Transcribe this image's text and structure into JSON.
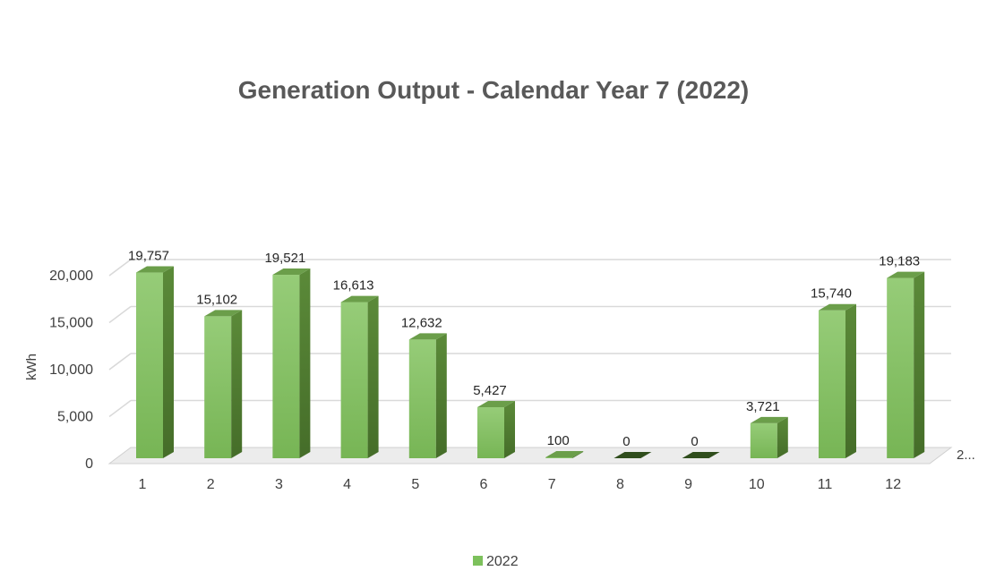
{
  "chart_data": {
    "type": "bar",
    "title": "Generation Output - Calendar Year 7 (2022)",
    "ylabel": "kWh",
    "xlabel": "",
    "depth_axis_label": "2...",
    "categories": [
      "1",
      "2",
      "3",
      "4",
      "5",
      "6",
      "7",
      "8",
      "9",
      "10",
      "11",
      "12"
    ],
    "series": [
      {
        "name": "2022",
        "values": [
          19757,
          15102,
          19521,
          16613,
          12632,
          5427,
          100,
          0,
          0,
          3721,
          15740,
          19183
        ]
      }
    ],
    "data_labels": [
      "19,757",
      "15,102",
      "19,521",
      "16,613",
      "12,632",
      "5,427",
      "100",
      "0",
      "0",
      "3,721",
      "15,740",
      "19,183"
    ],
    "y_ticks": [
      "0",
      "5,000",
      "10,000",
      "15,000",
      "20,000"
    ],
    "y_tick_values": [
      0,
      5000,
      10000,
      15000,
      20000
    ],
    "ylim": [
      0,
      20000
    ],
    "grid": true,
    "legend_position": "bottom",
    "colors": {
      "bar_front": "#7dc15c",
      "bar_side": "#4d7a2e",
      "bar_top": "#6b9e4a",
      "grid": "#d9d9d9",
      "floor": "#ececec"
    }
  }
}
